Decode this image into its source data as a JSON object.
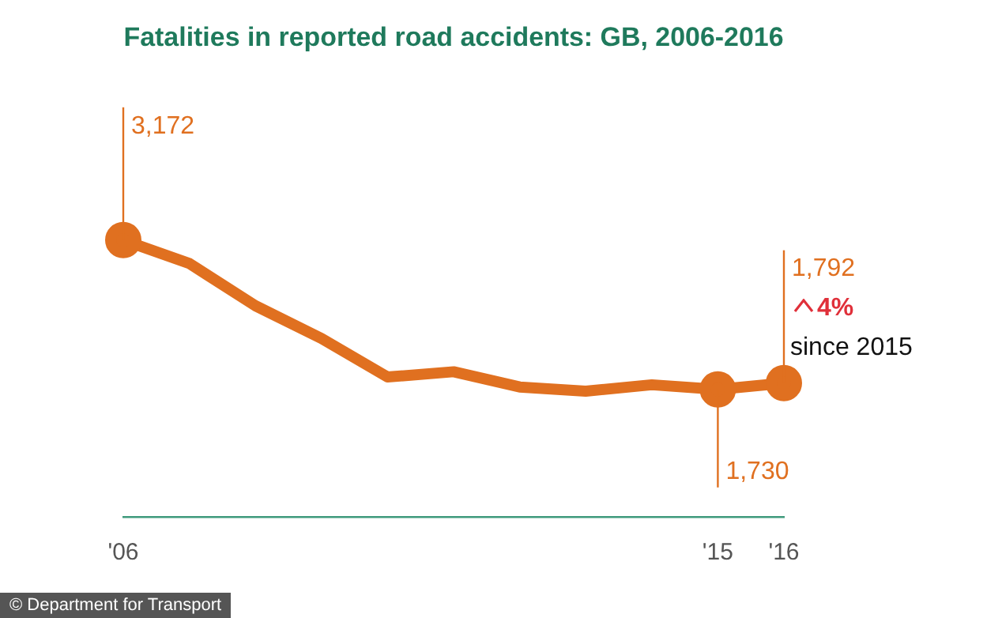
{
  "chart_data": {
    "type": "line",
    "title": "Fatalities in reported road accidents: GB, 2006-2016",
    "categories": [
      "'06",
      null,
      null,
      null,
      null,
      null,
      null,
      null,
      null,
      "'15",
      "'16"
    ],
    "series": [
      {
        "color": "#e07020",
        "values": [
          3172,
          2946,
          2538,
          2222,
          1850,
          1901,
          1754,
          1713,
          1775,
          1730,
          1792
        ],
        "value_labels": [
          "3,172",
          null,
          null,
          null,
          null,
          null,
          null,
          null,
          null,
          "1,730",
          "1,792"
        ]
      }
    ],
    "legend": false,
    "grid": false,
    "tick_labels": "x",
    "annotations": [
      "4%",
      "since 2015",
      "© Department for Transport"
    ]
  }
}
